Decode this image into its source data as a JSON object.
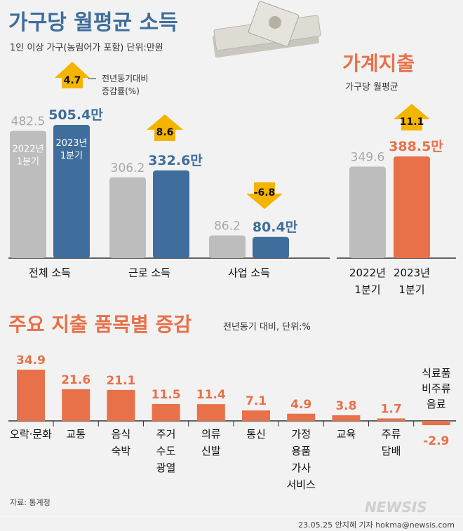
{
  "header": {
    "title": "가구당 월평균 소득",
    "subtitle": "1인 이상 가구(농림어가 포함) 단위:만원",
    "legend_arrow": "전년동기대비",
    "legend_arrow2": "증감률(%)"
  },
  "expenditure_header": {
    "title": "가계지출",
    "subtitle": "가구당 월평균"
  },
  "section2": {
    "title": "주요 지출 품목별 증감",
    "subtitle": "전년동기 대비, 단위:%"
  },
  "footer": {
    "source": "자료: 통계청",
    "credit": "23.05.25 안지혜 기자 hokma@newsis.com",
    "logo": "NEWSIS"
  },
  "colors": {
    "gray": "#bdbdbd",
    "blue": "#3f6d9c",
    "orange": "#e8714a",
    "arrow": "#f5b400"
  },
  "chart_data": [
    {
      "type": "bar",
      "categories": [
        "전체 소득",
        "근로 소득",
        "사업 소득"
      ],
      "series": [
        {
          "name": "2022년 1분기",
          "values": [
            482.5,
            306.2,
            86.2
          ],
          "labels": [
            "482.5",
            "306.2",
            "86.2"
          ]
        },
        {
          "name": "2023년 1분기",
          "values": [
            505.4,
            332.6,
            80.4
          ],
          "labels": [
            "505.4만",
            "332.6만",
            "80.4만"
          ]
        }
      ],
      "inbar_labels": [
        [
          "2022년",
          "1분기"
        ],
        [
          "2023년",
          "1분기"
        ]
      ],
      "change": [
        4.7,
        8.6,
        -6.8
      ],
      "change_labels": [
        "4.7",
        "8.6",
        "-6.8"
      ]
    },
    {
      "type": "bar",
      "categories": [
        "2022년 1분기",
        "2023년 1분기"
      ],
      "category_lines": [
        [
          "2022년",
          "1분기"
        ],
        [
          "2023년",
          "1분기"
        ]
      ],
      "values": [
        349.6,
        388.5
      ],
      "labels": [
        "349.6",
        "388.5만"
      ],
      "change": 11.1,
      "change_label": "11.1"
    },
    {
      "type": "bar",
      "categories": [
        "오락·문화",
        "교통",
        "음식 숙박",
        "주거 수도 광열",
        "의류 신발",
        "통신",
        "가정용품 가사서비스",
        "교육",
        "주류 담배",
        "식료품 비주류 음료"
      ],
      "category_lines": [
        [
          "오락·문화"
        ],
        [
          "교통"
        ],
        [
          "음식",
          "숙박"
        ],
        [
          "주거",
          "수도",
          "광열"
        ],
        [
          "의류",
          "신발"
        ],
        [
          "통신"
        ],
        [
          "가정",
          "용품",
          "가사",
          "서비스"
        ],
        [
          "교육"
        ],
        [
          "주류",
          "담배"
        ],
        [
          "식료품",
          "비주류",
          "음료"
        ]
      ],
      "values": [
        34.9,
        21.6,
        21.1,
        11.5,
        11.4,
        7.1,
        4.9,
        3.8,
        1.7,
        -2.9
      ],
      "labels": [
        "34.9",
        "21.6",
        "21.1",
        "11.5",
        "11.4",
        "7.1",
        "4.9",
        "3.8",
        "1.7",
        "-2.9"
      ]
    }
  ]
}
